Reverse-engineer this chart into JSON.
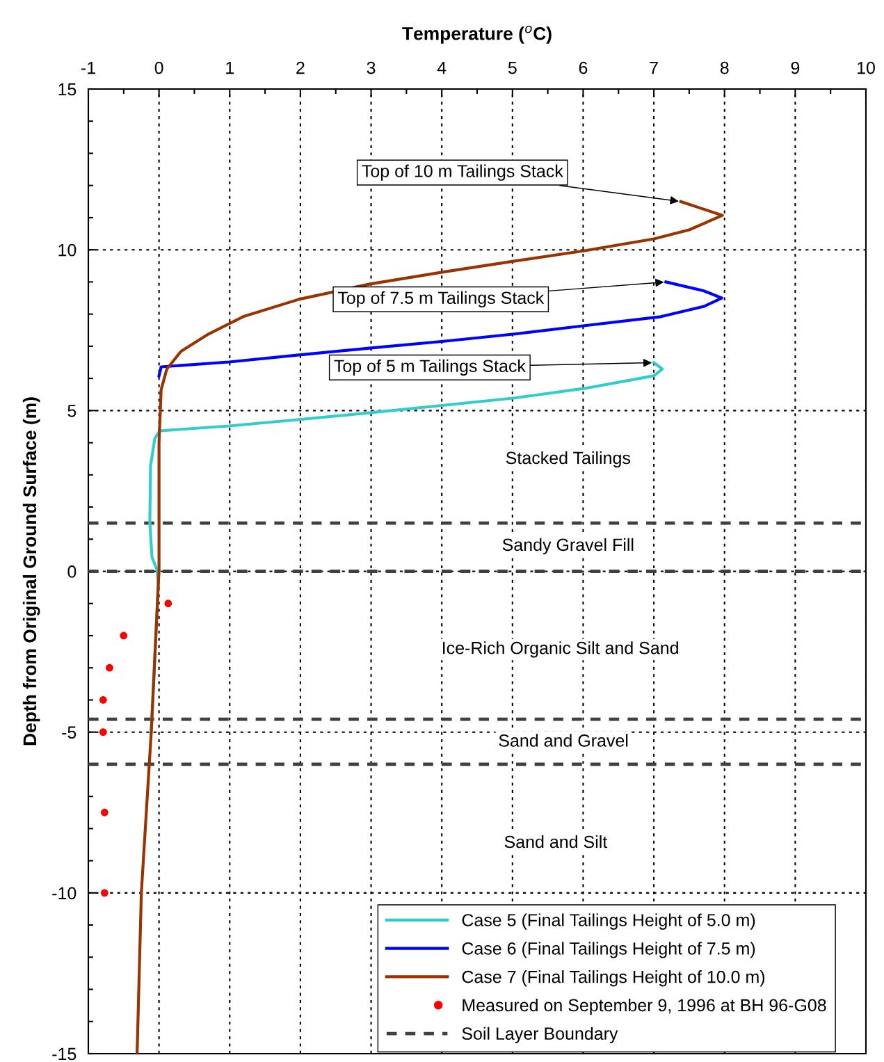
{
  "chart_data": {
    "type": "line",
    "xlabel": "Temperature ($^{o}$C)",
    "ylabel": "Depth from Original Ground Surface (m)",
    "xlim": [
      -1,
      10
    ],
    "xticks": [
      -1,
      0,
      1,
      2,
      3,
      4,
      5,
      6,
      7,
      8,
      9,
      10
    ],
    "ylim": [
      -15,
      15
    ],
    "yticks": [
      -15,
      -10,
      -5,
      0,
      5,
      10,
      15
    ],
    "grid": true,
    "legend": "bottom right",
    "line_style": "solid",
    "series": [
      {
        "name": "Case 5 (Final Tailings Height of 5.0 m)",
        "color": "#33cccc",
        "x": [
          7.0,
          7.12,
          7.0,
          6.02,
          5.03,
          4.05,
          2.97,
          1.98,
          0.99,
          0.01,
          -0.06,
          -0.12,
          -0.13,
          -0.1,
          -0.03,
          -0.01,
          -0.11
        ],
        "values": [
          6.49,
          6.29,
          6.08,
          5.69,
          5.39,
          5.17,
          4.93,
          4.72,
          4.52,
          4.37,
          4.13,
          3.27,
          1.54,
          0.45,
          0.06,
          -0.4,
          -5
        ]
      },
      {
        "name": "Case 6 (Final Tailings Height of 7.5 m)",
        "color": "#0000ff",
        "x": [
          7.17,
          7.71,
          7.96,
          7.71,
          7.1,
          6.02,
          5.03,
          4.05,
          2.97,
          1.98,
          0.99,
          0.03,
          0.0
        ],
        "values": [
          9.0,
          8.72,
          8.5,
          8.24,
          7.92,
          7.64,
          7.38,
          7.16,
          6.94,
          6.73,
          6.51,
          6.36,
          6.08
        ]
      },
      {
        "name": "Case 7 (Final Tailings Height of 10.0 m)",
        "color": "#993300",
        "x": [
          7.38,
          7.97,
          7.5,
          7.0,
          6.02,
          5.03,
          4.05,
          2.97,
          1.98,
          1.19,
          0.7,
          0.31,
          0.11,
          0.03,
          0.0,
          0.0,
          -0.01,
          -0.11,
          -0.25,
          -0.31
        ],
        "values": [
          11.5,
          11.07,
          10.62,
          10.34,
          9.97,
          9.65,
          9.32,
          8.93,
          8.46,
          7.92,
          7.38,
          6.84,
          6.29,
          5.65,
          4.0,
          0.0,
          -0.4,
          -5,
          -10,
          -15
        ]
      },
      {
        "name": "Measured on September 9, 1996 at BH 96-G08",
        "type": "scatter",
        "marker": "circle",
        "color": "#ff0000",
        "x": [
          0.13,
          -0.5,
          -0.7,
          -0.79,
          -0.79,
          -0.77,
          -0.77
        ],
        "values": [
          -1,
          -2,
          -3,
          -4,
          -5,
          -7.5,
          -10
        ]
      }
    ],
    "ref_lines": [
      {
        "axis": "y",
        "value": 1.5,
        "label": "Soil Layer Boundary",
        "color": "#404040",
        "line_style": "dashed"
      },
      {
        "axis": "y",
        "value": 0,
        "color": "#404040",
        "line_style": "dashed"
      },
      {
        "axis": "y",
        "value": -4.6,
        "color": "#404040",
        "line_style": "dashed"
      },
      {
        "axis": "y",
        "value": -6.0,
        "color": "#404040",
        "line_style": "dashed"
      }
    ],
    "annotations": [
      {
        "text": "Top of 10 m Tailings Stack",
        "x": 7.38,
        "y": 11.5
      },
      {
        "text": "Top of 7.5 m Tailings Stack",
        "x": 7.17,
        "y": 9.0
      },
      {
        "text": "Top of 5 m Tailings Stack",
        "x": 7.0,
        "y": 6.49
      },
      "Stacked Tailings",
      "Sandy Gravel Fill",
      "Ice-Rich Organic Silt and Sand",
      "Sand and Gravel",
      "Sand and Silt"
    ]
  }
}
